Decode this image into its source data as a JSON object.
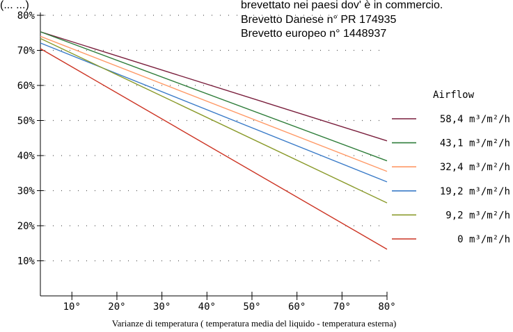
{
  "header_fragment": "(... ...)",
  "patent_lines": [
    "brevettato nei paesi dov' è in commercio.",
    "Brevetto Danese n° PR 174935",
    "Brevetto europeo n° 1448937"
  ],
  "chart_data": {
    "type": "line",
    "xlabel": "Varianze di temperatura ( temperatura media del liquido - temperatura esterna)",
    "ylabel": "",
    "xlim": [
      3,
      80
    ],
    "ylim": [
      0,
      80
    ],
    "x_ticks": [
      10,
      20,
      30,
      40,
      50,
      60,
      70,
      80
    ],
    "x_tick_labels": [
      "10°",
      "20°",
      "30°",
      "40°",
      "50°",
      "60°",
      "70°",
      "80°"
    ],
    "y_ticks": [
      10,
      20,
      30,
      40,
      50,
      60,
      70,
      80
    ],
    "y_tick_labels": [
      "10%",
      "20%",
      "30%",
      "40%",
      "50%",
      "60%",
      "70%",
      "80%"
    ],
    "grid": "dotted",
    "legend_title": "Airflow",
    "legend_position": "right",
    "series": [
      {
        "name": "58,4 m³/m²/h",
        "color": "#7a1f3d",
        "x": [
          3,
          80
        ],
        "y": [
          75.3,
          44.2
        ]
      },
      {
        "name": "43,1 m³/m²/h",
        "color": "#2e7d3a",
        "x": [
          3,
          80
        ],
        "y": [
          75.3,
          38.5
        ]
      },
      {
        "name": "32,4 m³/m²/h",
        "color": "#ff9966",
        "x": [
          3,
          80
        ],
        "y": [
          74.0,
          35.5
        ]
      },
      {
        "name": "19,2 m³/m²/h",
        "color": "#3a7bc8",
        "x": [
          3,
          80
        ],
        "y": [
          72.1,
          32.5
        ]
      },
      {
        "name": "9,2 m³/m²/h",
        "color": "#8a9a2a",
        "x": [
          3,
          80
        ],
        "y": [
          73.4,
          26.5
        ]
      },
      {
        "name": "0 m³/m²/h",
        "color": "#cc3322",
        "x": [
          3,
          80
        ],
        "y": [
          70.5,
          13.3
        ]
      }
    ]
  }
}
